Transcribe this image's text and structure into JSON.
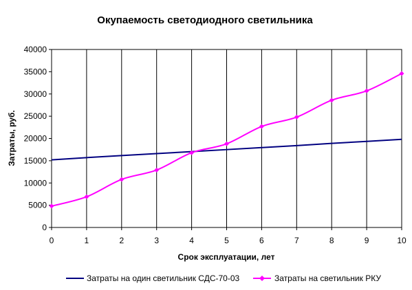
{
  "chart_data": {
    "type": "line",
    "title": "Окупаемость светодиодного светильника",
    "xlabel": "Срок эксплуатации, лет",
    "ylabel": "Затраты, руб.",
    "x": [
      0,
      1,
      2,
      3,
      4,
      5,
      6,
      7,
      8,
      9,
      10
    ],
    "xlim": [
      0,
      10
    ],
    "ylim": [
      0,
      40000
    ],
    "yticks": [
      0,
      5000,
      10000,
      15000,
      20000,
      25000,
      30000,
      35000,
      40000
    ],
    "xticks": [
      0,
      1,
      2,
      3,
      4,
      5,
      6,
      7,
      8,
      9,
      10
    ],
    "grid": "vertical",
    "legend_position": "bottom",
    "series": [
      {
        "name": "Затраты на один светильник СДС-70-03",
        "color": "#000080",
        "marker": "none",
        "values": [
          15200,
          15700,
          16150,
          16600,
          17050,
          17500,
          17950,
          18400,
          18900,
          19350,
          19800
        ]
      },
      {
        "name": "Затраты на светильник РКУ",
        "color": "#ff00ff",
        "marker": "diamond",
        "values": [
          4800,
          6900,
          10800,
          12900,
          16800,
          18800,
          22700,
          24800,
          28600,
          30700,
          34600
        ]
      }
    ]
  }
}
